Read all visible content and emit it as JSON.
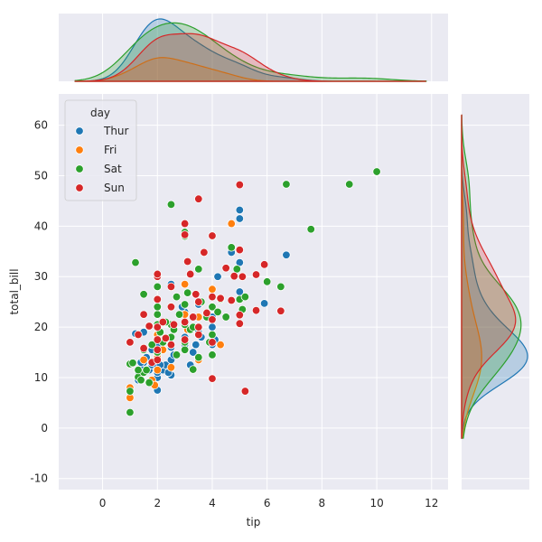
{
  "chart_data": {
    "type": "scatter",
    "xlabel": "tip",
    "ylabel": "total_bill",
    "xlim": [
      -1.6,
      12.6
    ],
    "ylim": [
      -12.2,
      66.2
    ],
    "xticks": [
      0,
      2,
      4,
      6,
      8,
      10,
      12
    ],
    "yticks": [
      -10,
      0,
      10,
      20,
      30,
      40,
      50,
      60
    ],
    "grid": true,
    "legend": {
      "title": "day",
      "placement": "top-left"
    },
    "marginals": {
      "top": "kde of tip by day",
      "right": "kde of total_bill by day"
    },
    "series": [
      {
        "name": "Thur",
        "color": "#1f77b4",
        "points": [
          [
            1.0,
            7.5
          ],
          [
            1.3,
            9.5
          ],
          [
            1.3,
            11.2
          ],
          [
            1.5,
            12.0
          ],
          [
            1.5,
            13.0
          ],
          [
            1.7,
            11.5
          ],
          [
            1.8,
            12.5
          ],
          [
            2.0,
            7.5
          ],
          [
            2.0,
            10.0
          ],
          [
            2.0,
            11.0
          ],
          [
            2.0,
            12.0
          ],
          [
            2.0,
            13.5
          ],
          [
            2.0,
            15.0
          ],
          [
            2.0,
            16.5
          ],
          [
            2.0,
            18.5
          ],
          [
            2.2,
            11.5
          ],
          [
            2.3,
            12.5
          ],
          [
            2.5,
            10.5
          ],
          [
            2.5,
            13.5
          ],
          [
            2.5,
            16.0
          ],
          [
            2.6,
            14.5
          ],
          [
            3.0,
            16.5
          ],
          [
            3.0,
            18.0
          ],
          [
            3.0,
            20.5
          ],
          [
            3.2,
            12.5
          ],
          [
            3.4,
            16.5
          ],
          [
            3.5,
            19.0
          ],
          [
            3.5,
            24.5
          ],
          [
            4.0,
            20.0
          ],
          [
            4.0,
            22.0
          ],
          [
            4.2,
            30.0
          ],
          [
            4.7,
            34.8
          ],
          [
            5.0,
            27.0
          ],
          [
            5.0,
            32.8
          ],
          [
            5.0,
            41.5
          ],
          [
            5.0,
            43.2
          ],
          [
            5.9,
            24.7
          ],
          [
            6.7,
            34.3
          ],
          [
            1.5,
            19.0
          ],
          [
            2.5,
            28.5
          ],
          [
            3.0,
            23.0
          ],
          [
            2.9,
            24.0
          ],
          [
            1.2,
            18.7
          ],
          [
            1.4,
            13.0
          ],
          [
            1.6,
            14.0
          ],
          [
            1.8,
            15.5
          ],
          [
            2.1,
            12.5
          ],
          [
            2.4,
            11.0
          ],
          [
            3.6,
            18.0
          ],
          [
            4.1,
            17.5
          ],
          [
            4.0,
            16.5
          ],
          [
            3.3,
            15.0
          ]
        ]
      },
      {
        "name": "Fri",
        "color": "#ff7f0e",
        "points": [
          [
            1.0,
            6.0
          ],
          [
            1.0,
            8.0
          ],
          [
            1.5,
            13.5
          ],
          [
            1.8,
            9.5
          ],
          [
            2.0,
            11.5
          ],
          [
            2.0,
            14.0
          ],
          [
            2.5,
            16.5
          ],
          [
            3.0,
            22.5
          ],
          [
            3.0,
            28.5
          ],
          [
            3.5,
            13.5
          ],
          [
            4.0,
            27.5
          ],
          [
            4.3,
            16.5
          ],
          [
            4.7,
            40.5
          ],
          [
            2.2,
            15.5
          ],
          [
            3.1,
            19.5
          ],
          [
            2.5,
            12.0
          ],
          [
            2.0,
            18.5
          ],
          [
            3.5,
            22.0
          ],
          [
            1.9,
            8.5
          ]
        ]
      },
      {
        "name": "Sat",
        "color": "#2ca02c",
        "points": [
          [
            1.0,
            3.1
          ],
          [
            1.0,
            7.3
          ],
          [
            1.0,
            12.7
          ],
          [
            1.1,
            12.9
          ],
          [
            1.2,
            32.8
          ],
          [
            1.3,
            10.1
          ],
          [
            1.5,
            11.0
          ],
          [
            1.5,
            15.5
          ],
          [
            1.5,
            26.5
          ],
          [
            1.7,
            9.0
          ],
          [
            2.0,
            15.0
          ],
          [
            2.0,
            17.5
          ],
          [
            2.0,
            20.5
          ],
          [
            2.0,
            22.5
          ],
          [
            2.0,
            24.0
          ],
          [
            2.0,
            28.0
          ],
          [
            2.2,
            17.0
          ],
          [
            2.5,
            18.0
          ],
          [
            2.5,
            20.5
          ],
          [
            2.5,
            44.3
          ],
          [
            2.7,
            14.5
          ],
          [
            3.0,
            15.5
          ],
          [
            3.0,
            17.0
          ],
          [
            3.0,
            20.5
          ],
          [
            3.0,
            24.5
          ],
          [
            3.0,
            38.0
          ],
          [
            3.0,
            38.8
          ],
          [
            3.1,
            26.8
          ],
          [
            3.2,
            19.5
          ],
          [
            3.3,
            11.6
          ],
          [
            3.4,
            26.5
          ],
          [
            3.5,
            14.0
          ],
          [
            3.5,
            20.0
          ],
          [
            3.8,
            22.0
          ],
          [
            4.0,
            14.5
          ],
          [
            4.0,
            18.5
          ],
          [
            4.0,
            24.0
          ],
          [
            4.3,
            25.5
          ],
          [
            4.5,
            22.0
          ],
          [
            4.7,
            35.8
          ],
          [
            4.9,
            31.5
          ],
          [
            5.0,
            25.5
          ],
          [
            5.2,
            26.0
          ],
          [
            6.0,
            29.0
          ],
          [
            6.5,
            28.0
          ],
          [
            6.7,
            48.3
          ],
          [
            7.6,
            39.4
          ],
          [
            9.0,
            48.3
          ],
          [
            10.0,
            50.8
          ],
          [
            1.4,
            9.5
          ],
          [
            1.8,
            16.5
          ],
          [
            2.3,
            21.0
          ],
          [
            2.8,
            22.5
          ],
          [
            3.6,
            25.0
          ],
          [
            4.2,
            23.0
          ],
          [
            1.6,
            11.5
          ],
          [
            2.1,
            19.0
          ],
          [
            2.6,
            19.5
          ],
          [
            3.3,
            20.0
          ],
          [
            3.9,
            17.0
          ],
          [
            1.3,
            11.5
          ],
          [
            2.7,
            26.0
          ],
          [
            3.5,
            31.5
          ],
          [
            5.1,
            23.5
          ]
        ]
      },
      {
        "name": "Sun",
        "color": "#d62728",
        "points": [
          [
            1.0,
            17.0
          ],
          [
            1.3,
            18.5
          ],
          [
            1.5,
            15.8
          ],
          [
            1.5,
            22.5
          ],
          [
            1.8,
            13.0
          ],
          [
            2.0,
            13.5
          ],
          [
            2.0,
            15.5
          ],
          [
            2.0,
            17.5
          ],
          [
            2.0,
            20.0
          ],
          [
            2.0,
            25.5
          ],
          [
            2.0,
            30.0
          ],
          [
            2.0,
            30.5
          ],
          [
            2.2,
            21.0
          ],
          [
            2.5,
            16.5
          ],
          [
            2.5,
            24.0
          ],
          [
            2.6,
            20.5
          ],
          [
            3.0,
            17.5
          ],
          [
            3.0,
            21.0
          ],
          [
            3.0,
            40.5
          ],
          [
            3.0,
            38.3
          ],
          [
            3.1,
            33.0
          ],
          [
            3.2,
            30.5
          ],
          [
            3.3,
            22.0
          ],
          [
            3.5,
            18.5
          ],
          [
            3.5,
            20.0
          ],
          [
            3.5,
            25.0
          ],
          [
            3.5,
            45.4
          ],
          [
            3.7,
            34.8
          ],
          [
            4.0,
            9.8
          ],
          [
            4.0,
            17.0
          ],
          [
            4.0,
            21.5
          ],
          [
            4.0,
            26.0
          ],
          [
            4.0,
            38.1
          ],
          [
            4.3,
            25.7
          ],
          [
            4.5,
            31.7
          ],
          [
            4.7,
            25.3
          ],
          [
            5.0,
            20.7
          ],
          [
            5.0,
            22.4
          ],
          [
            5.0,
            48.2
          ],
          [
            5.0,
            35.3
          ],
          [
            5.1,
            30.0
          ],
          [
            5.2,
            7.3
          ],
          [
            5.6,
            30.4
          ],
          [
            5.6,
            23.3
          ],
          [
            5.9,
            32.4
          ],
          [
            6.5,
            23.2
          ],
          [
            2.5,
            28.0
          ],
          [
            3.4,
            26.5
          ],
          [
            2.3,
            17.8
          ],
          [
            1.7,
            20.2
          ],
          [
            3.8,
            22.8
          ],
          [
            4.8,
            30.1
          ]
        ]
      }
    ]
  }
}
